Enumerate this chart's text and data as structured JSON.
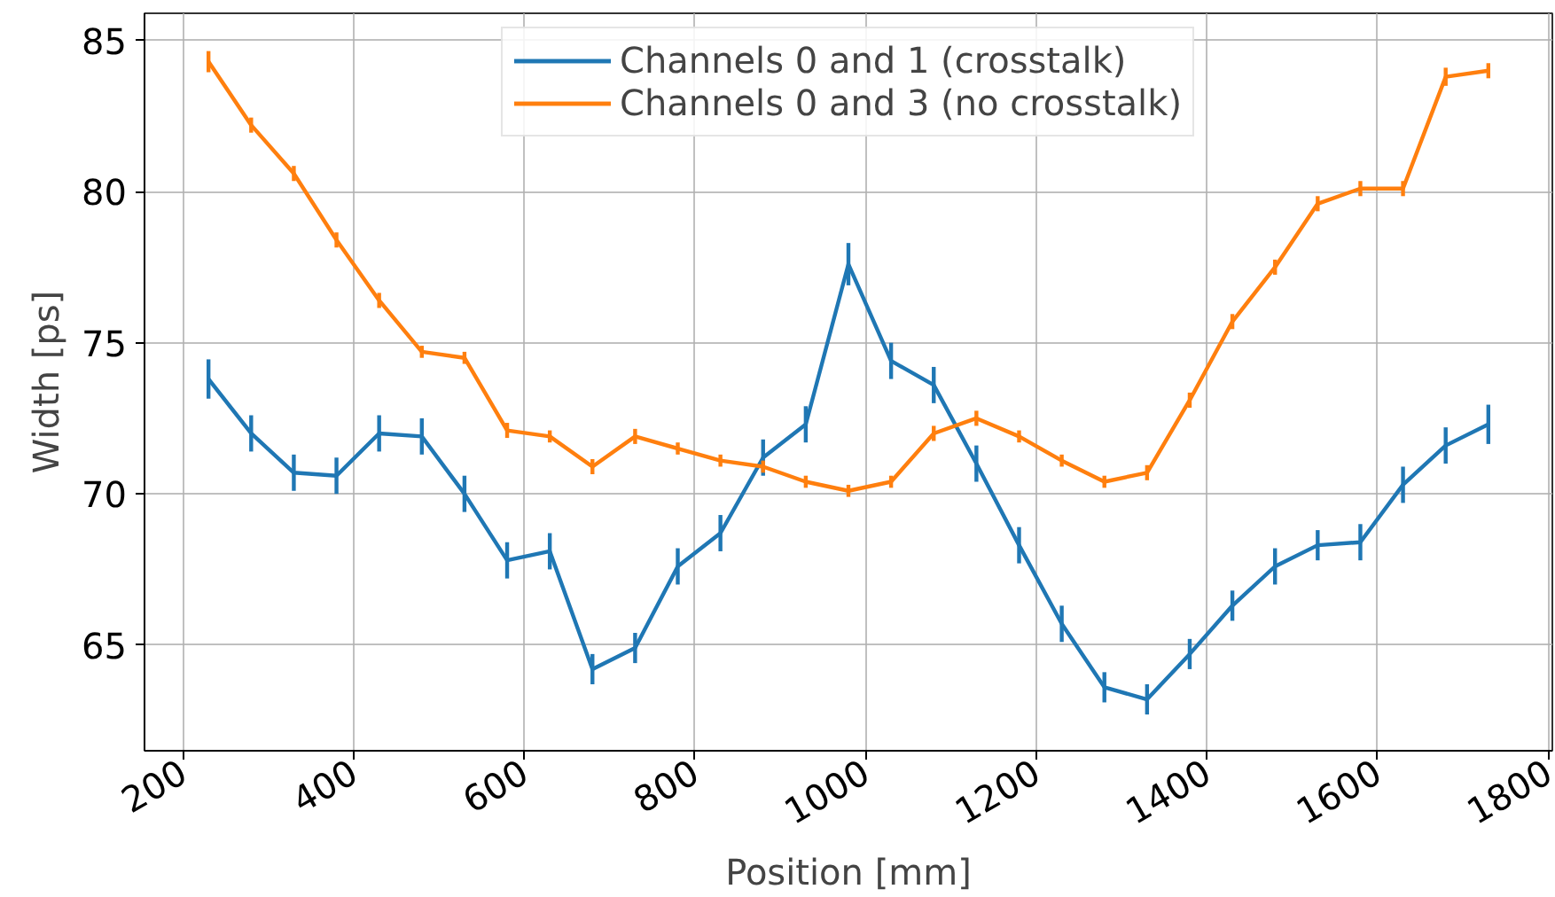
{
  "chart_data": {
    "type": "line",
    "xlabel": "Position [mm]",
    "ylabel": "Width [ps]",
    "x": [
      230,
      280,
      330,
      380,
      430,
      480,
      530,
      580,
      630,
      680,
      730,
      780,
      830,
      880,
      930,
      980,
      1030,
      1080,
      1130,
      1180,
      1230,
      1280,
      1330,
      1380,
      1430,
      1480,
      1530,
      1580,
      1630,
      1680,
      1730
    ],
    "series": [
      {
        "name": "Channels 0 and 1 (crosstalk)",
        "color": "#1f77b4",
        "values": [
          73.8,
          72.0,
          70.7,
          70.6,
          72.0,
          71.9,
          70.0,
          67.8,
          68.1,
          64.2,
          64.9,
          67.6,
          68.7,
          71.2,
          72.3,
          77.6,
          74.4,
          73.6,
          71.0,
          68.3,
          65.7,
          63.6,
          63.2,
          64.7,
          66.3,
          67.6,
          68.3,
          68.4,
          70.3,
          71.6,
          72.3
        ],
        "errors": [
          0.65,
          0.6,
          0.6,
          0.6,
          0.6,
          0.6,
          0.6,
          0.6,
          0.6,
          0.5,
          0.5,
          0.6,
          0.6,
          0.6,
          0.6,
          0.7,
          0.6,
          0.6,
          0.6,
          0.6,
          0.6,
          0.5,
          0.5,
          0.5,
          0.5,
          0.6,
          0.5,
          0.6,
          0.6,
          0.6,
          0.65
        ]
      },
      {
        "name": "Channels 0 and 3 (no crosstalk)",
        "color": "#ff7f0e",
        "values": [
          84.3,
          82.2,
          80.6,
          78.4,
          76.4,
          74.7,
          74.5,
          72.1,
          71.9,
          70.9,
          71.9,
          71.5,
          71.1,
          70.9,
          70.4,
          70.1,
          70.4,
          72.0,
          72.5,
          71.9,
          71.1,
          70.4,
          70.7,
          73.1,
          75.7,
          77.5,
          79.6,
          80.1,
          80.1,
          83.8,
          84.0
        ],
        "errors": [
          0.35,
          0.25,
          0.25,
          0.25,
          0.25,
          0.2,
          0.2,
          0.25,
          0.2,
          0.25,
          0.25,
          0.2,
          0.2,
          0.2,
          0.2,
          0.2,
          0.2,
          0.25,
          0.25,
          0.2,
          0.2,
          0.2,
          0.25,
          0.25,
          0.25,
          0.25,
          0.25,
          0.25,
          0.25,
          0.3,
          0.25
        ]
      }
    ],
    "xlim": [
      155,
      1805
    ],
    "ylim": [
      61.5,
      85.9
    ],
    "xticks": [
      200,
      400,
      600,
      800,
      1000,
      1200,
      1400,
      1600,
      1800
    ],
    "yticks": [
      65,
      70,
      75,
      80,
      85
    ],
    "grid": true,
    "legend": "top",
    "marker": "none",
    "line_style": "solid"
  }
}
